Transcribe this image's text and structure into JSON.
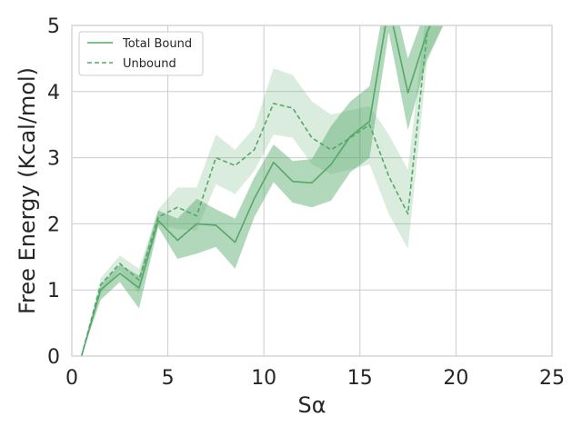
{
  "chart_data": {
    "type": "line",
    "title": "",
    "xlabel": "Sα",
    "ylabel": "Free Energy (Kcal/mol)",
    "xlim": [
      0,
      25
    ],
    "ylim": [
      0,
      5
    ],
    "xticks": [
      0,
      5,
      10,
      15,
      20,
      25
    ],
    "yticks": [
      0,
      1,
      2,
      3,
      4,
      5
    ],
    "grid": true,
    "legend_position": "top-left",
    "colors": {
      "line": "#55a868",
      "grid": "#cccccc",
      "frame": "#cccccc"
    },
    "series": [
      {
        "name": "Total Bound",
        "style": "solid",
        "x": [
          0.5,
          1.5,
          2.5,
          3.5,
          4.5,
          5.5,
          6.5,
          7.5,
          8.5,
          9.5,
          10.5,
          11.5,
          12.5,
          13.5,
          14.5,
          15.5,
          16.5,
          17.5,
          18.5,
          19.5
        ],
        "y": [
          0.0,
          1.0,
          1.25,
          1.03,
          2.05,
          1.75,
          2.0,
          1.98,
          1.72,
          2.38,
          2.93,
          2.64,
          2.62,
          2.9,
          3.32,
          3.55,
          5.3,
          3.98,
          4.9,
          5.5
        ],
        "lower": [
          0.0,
          0.85,
          1.12,
          0.72,
          1.95,
          1.47,
          1.55,
          1.65,
          1.32,
          2.1,
          2.63,
          2.32,
          2.25,
          2.35,
          2.78,
          3.0,
          4.9,
          3.42,
          4.5,
          5.1
        ],
        "upper": [
          0.0,
          1.08,
          1.38,
          1.22,
          2.2,
          2.08,
          2.38,
          2.22,
          2.08,
          2.7,
          3.2,
          2.95,
          2.98,
          3.48,
          3.85,
          4.08,
          5.7,
          4.5,
          5.3,
          5.9
        ]
      },
      {
        "name": "Unbound",
        "style": "dashed",
        "x": [
          0.5,
          1.5,
          2.5,
          3.5,
          4.5,
          5.5,
          6.5,
          7.5,
          8.5,
          9.5,
          10.5,
          11.5,
          12.5,
          13.5,
          14.5,
          15.5,
          16.5,
          17.5,
          18.5,
          19.5
        ],
        "y": [
          0.0,
          1.08,
          1.4,
          1.15,
          2.1,
          2.25,
          2.12,
          3.0,
          2.88,
          3.12,
          3.82,
          3.75,
          3.3,
          3.12,
          3.3,
          3.5,
          2.72,
          2.15,
          4.9,
          5.5
        ],
        "lower": [
          0.0,
          0.95,
          1.3,
          0.95,
          1.98,
          1.92,
          1.9,
          2.6,
          2.45,
          2.8,
          3.35,
          3.3,
          2.9,
          2.75,
          2.82,
          2.9,
          2.15,
          1.62,
          4.45,
          5.1
        ],
        "upper": [
          0.0,
          1.18,
          1.52,
          1.32,
          2.22,
          2.55,
          2.55,
          3.35,
          3.12,
          3.45,
          4.35,
          4.25,
          3.85,
          3.65,
          3.72,
          3.78,
          3.35,
          2.82,
          5.35,
          5.9
        ]
      }
    ]
  }
}
